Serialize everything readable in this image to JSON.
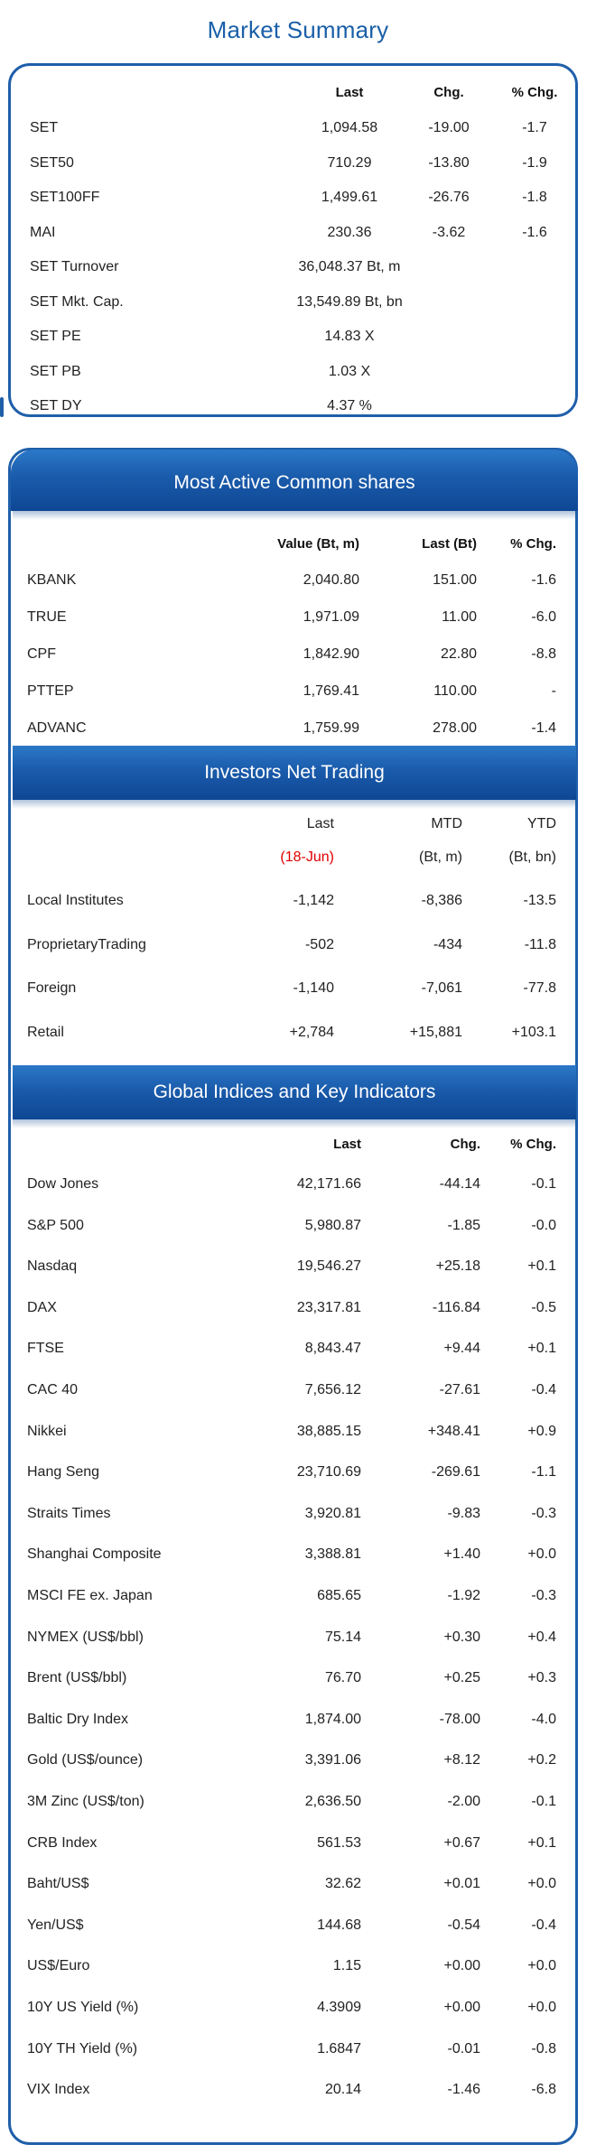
{
  "market_summary": {
    "title": "Market Summary",
    "headers": {
      "last": "Last",
      "chg": "Chg.",
      "pct": "% Chg."
    },
    "rows": [
      {
        "name": "SET",
        "last": "1,094.58",
        "chg": "-19.00",
        "pct": "-1.7"
      },
      {
        "name": "SET50",
        "last": "710.29",
        "chg": "-13.80",
        "pct": "-1.9"
      },
      {
        "name": "SET100FF",
        "last": "1,499.61",
        "chg": "-26.76",
        "pct": "-1.8"
      },
      {
        "name": "MAI",
        "last": "230.36",
        "chg": "-3.62",
        "pct": "-1.6"
      },
      {
        "name": "SET Turnover",
        "last": "36,048.37 Bt, m",
        "chg": "",
        "pct": ""
      },
      {
        "name": "SET Mkt. Cap.",
        "last": "13,549.89 Bt, bn",
        "chg": "",
        "pct": ""
      },
      {
        "name": "SET PE",
        "last": "14.83 X",
        "chg": "",
        "pct": ""
      },
      {
        "name": "SET PB",
        "last": "1.03 X",
        "chg": "",
        "pct": ""
      },
      {
        "name": "SET DY",
        "last": "4.37 %",
        "chg": "",
        "pct": ""
      }
    ]
  },
  "most_active": {
    "title": "Most Active Common shares",
    "headers": {
      "value": "Value (Bt, m)",
      "last": "Last (Bt)",
      "pct": "% Chg."
    },
    "rows": [
      {
        "name": "KBANK",
        "value": "2,040.80",
        "last": "151.00",
        "pct": "-1.6"
      },
      {
        "name": "TRUE",
        "value": "1,971.09",
        "last": "11.00",
        "pct": "-6.0"
      },
      {
        "name": "CPF",
        "value": "1,842.90",
        "last": "22.80",
        "pct": "-8.8"
      },
      {
        "name": "PTTEP",
        "value": "1,769.41",
        "last": "110.00",
        "pct": "-"
      },
      {
        "name": "ADVANC",
        "value": "1,759.99",
        "last": "278.00",
        "pct": "-1.4"
      }
    ]
  },
  "investors": {
    "title": "Investors Net Trading",
    "headers": {
      "last": "Last",
      "mtd": "MTD",
      "ytd": "YTD"
    },
    "subheaders": {
      "last": "(18-Jun)",
      "mtd": "(Bt, m)",
      "ytd": "(Bt, bn)"
    },
    "rows": [
      {
        "name": "Local Institutes",
        "last": "-1,142",
        "mtd": "-8,386",
        "ytd": "-13.5"
      },
      {
        "name": "ProprietaryTrading",
        "last": "-502",
        "mtd": "-434",
        "ytd": "-11.8"
      },
      {
        "name": "Foreign",
        "last": "-1,140",
        "mtd": "-7,061",
        "ytd": "-77.8"
      },
      {
        "name": "Retail",
        "last": "+2,784",
        "mtd": "+15,881",
        "ytd": "+103.1"
      }
    ]
  },
  "global": {
    "title": "Global Indices and Key Indicators",
    "headers": {
      "last": "Last",
      "chg": "Chg.",
      "pct": "% Chg."
    },
    "rows": [
      {
        "name": "Dow Jones",
        "last": "42,171.66",
        "chg": "-44.14",
        "pct": "-0.1"
      },
      {
        "name": "S&P 500",
        "last": "5,980.87",
        "chg": "-1.85",
        "pct": "-0.0"
      },
      {
        "name": "Nasdaq",
        "last": "19,546.27",
        "chg": "+25.18",
        "pct": "+0.1"
      },
      {
        "name": "DAX",
        "last": "23,317.81",
        "chg": "-116.84",
        "pct": "-0.5"
      },
      {
        "name": "FTSE",
        "last": "8,843.47",
        "chg": "+9.44",
        "pct": "+0.1"
      },
      {
        "name": "CAC 40",
        "last": "7,656.12",
        "chg": "-27.61",
        "pct": "-0.4"
      },
      {
        "name": "Nikkei",
        "last": "38,885.15",
        "chg": "+348.41",
        "pct": "+0.9"
      },
      {
        "name": "Hang Seng",
        "last": "23,710.69",
        "chg": "-269.61",
        "pct": "-1.1"
      },
      {
        "name": "Straits Times",
        "last": "3,920.81",
        "chg": "-9.83",
        "pct": "-0.3"
      },
      {
        "name": "Shanghai Composite",
        "last": "3,388.81",
        "chg": "+1.40",
        "pct": "+0.0"
      },
      {
        "name": "MSCI FE ex. Japan",
        "last": "685.65",
        "chg": "-1.92",
        "pct": "-0.3"
      },
      {
        "name": "NYMEX (US$/bbl)",
        "last": "75.14",
        "chg": "+0.30",
        "pct": "+0.4"
      },
      {
        "name": "Brent (US$/bbl)",
        "last": "76.70",
        "chg": "+0.25",
        "pct": "+0.3"
      },
      {
        "name": "Baltic Dry Index",
        "last": "1,874.00",
        "chg": "-78.00",
        "pct": "-4.0"
      },
      {
        "name": "Gold (US$/ounce)",
        "last": "3,391.06",
        "chg": "+8.12",
        "pct": "+0.2"
      },
      {
        "name": "3M Zinc (US$/ton)",
        "last": "2,636.50",
        "chg": "-2.00",
        "pct": "-0.1"
      },
      {
        "name": "CRB Index",
        "last": "561.53",
        "chg": "+0.67",
        "pct": "+0.1"
      },
      {
        "name": "Baht/US$",
        "last": "32.62",
        "chg": "+0.01",
        "pct": "+0.0"
      },
      {
        "name": "Yen/US$",
        "last": "144.68",
        "chg": "-0.54",
        "pct": "-0.4"
      },
      {
        "name": "US$/Euro",
        "last": "1.15",
        "chg": "+0.00",
        "pct": "+0.0"
      },
      {
        "name": "10Y US Yield (%)",
        "last": "4.3909",
        "chg": "+0.00",
        "pct": "+0.0"
      },
      {
        "name": "10Y TH Yield (%)",
        "last": "1.6847",
        "chg": "-0.01",
        "pct": "-0.8"
      },
      {
        "name": "VIX Index",
        "last": "20.14",
        "chg": "-1.46",
        "pct": "-6.8"
      }
    ]
  },
  "colors": {
    "accent": "#1f5faa",
    "band": "#1a5bab",
    "highlight": "#e00000"
  }
}
